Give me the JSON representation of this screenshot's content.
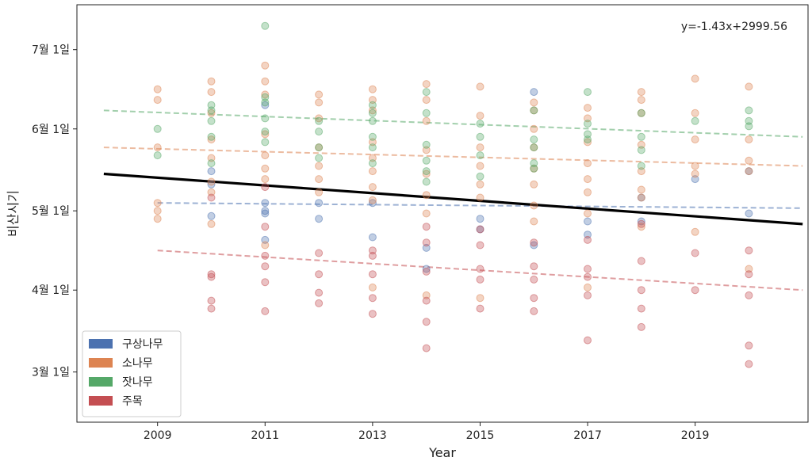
{
  "chart_data": {
    "type": "scatter",
    "title": "",
    "xlabel": "Year",
    "ylabel": "비산시기",
    "xlim": [
      2007.5,
      2021.1
    ],
    "ylim_dates": [
      "2018-02-10",
      "2018-07-18"
    ],
    "x_ticks": [
      2009,
      2011,
      2013,
      2015,
      2017,
      2019
    ],
    "y_ticks": [
      {
        "date": "2018-03-01",
        "label": "3월 1일"
      },
      {
        "date": "2018-04-01",
        "label": "4월 1일"
      },
      {
        "date": "2018-05-01",
        "label": "5월 1일"
      },
      {
        "date": "2018-06-01",
        "label": "6월 1일"
      },
      {
        "date": "2018-07-01",
        "label": "7월 1일"
      }
    ],
    "annotation": "y=-1.43x+2999.56",
    "legend_position": "lower-left",
    "overall_trend": {
      "color": "#000000",
      "points": [
        {
          "x": 2008,
          "date": "2018-05-15"
        },
        {
          "x": 2021,
          "date": "2018-04-26"
        }
      ]
    },
    "series": [
      {
        "name": "구상나무",
        "color": "#4c72b0",
        "trend": [
          {
            "x": 2009,
            "date": "2018-05-04"
          },
          {
            "x": 2021,
            "date": "2018-05-02"
          }
        ],
        "points": [
          {
            "x": 2010,
            "date": "2018-05-16"
          },
          {
            "x": 2010,
            "date": "2018-05-11"
          },
          {
            "x": 2010,
            "date": "2018-04-29"
          },
          {
            "x": 2011,
            "date": "2018-06-10"
          },
          {
            "x": 2011,
            "date": "2018-05-04"
          },
          {
            "x": 2011,
            "date": "2018-05-01"
          },
          {
            "x": 2011,
            "date": "2018-04-30"
          },
          {
            "x": 2011,
            "date": "2018-04-20"
          },
          {
            "x": 2012,
            "date": "2018-05-04"
          },
          {
            "x": 2012,
            "date": "2018-04-28"
          },
          {
            "x": 2013,
            "date": "2018-05-04"
          },
          {
            "x": 2013,
            "date": "2018-04-21"
          },
          {
            "x": 2014,
            "date": "2018-04-17"
          },
          {
            "x": 2014,
            "date": "2018-04-09"
          },
          {
            "x": 2015,
            "date": "2018-04-28"
          },
          {
            "x": 2015,
            "date": "2018-04-24"
          },
          {
            "x": 2016,
            "date": "2018-06-15"
          },
          {
            "x": 2016,
            "date": "2018-04-18"
          },
          {
            "x": 2017,
            "date": "2018-04-27"
          },
          {
            "x": 2017,
            "date": "2018-04-22"
          },
          {
            "x": 2018,
            "date": "2018-05-06"
          },
          {
            "x": 2018,
            "date": "2018-04-27"
          },
          {
            "x": 2019,
            "date": "2018-05-13"
          },
          {
            "x": 2020,
            "date": "2018-05-16"
          },
          {
            "x": 2020,
            "date": "2018-04-30"
          }
        ]
      },
      {
        "name": "소나무",
        "color": "#dd8452",
        "trend": [
          {
            "x": 2008,
            "date": "2018-05-25"
          },
          {
            "x": 2021,
            "date": "2018-05-18"
          }
        ],
        "points": [
          {
            "x": 2009,
            "date": "2018-06-16"
          },
          {
            "x": 2009,
            "date": "2018-06-12"
          },
          {
            "x": 2009,
            "date": "2018-05-25"
          },
          {
            "x": 2009,
            "date": "2018-05-04"
          },
          {
            "x": 2009,
            "date": "2018-05-01"
          },
          {
            "x": 2009,
            "date": "2018-04-28"
          },
          {
            "x": 2010,
            "date": "2018-06-19"
          },
          {
            "x": 2010,
            "date": "2018-06-15"
          },
          {
            "x": 2010,
            "date": "2018-06-07"
          },
          {
            "x": 2010,
            "date": "2018-05-28"
          },
          {
            "x": 2010,
            "date": "2018-05-21"
          },
          {
            "x": 2010,
            "date": "2018-05-12"
          },
          {
            "x": 2010,
            "date": "2018-05-08"
          },
          {
            "x": 2010,
            "date": "2018-04-26"
          },
          {
            "x": 2011,
            "date": "2018-06-25"
          },
          {
            "x": 2011,
            "date": "2018-06-19"
          },
          {
            "x": 2011,
            "date": "2018-06-14"
          },
          {
            "x": 2011,
            "date": "2018-05-30"
          },
          {
            "x": 2011,
            "date": "2018-05-22"
          },
          {
            "x": 2011,
            "date": "2018-05-17"
          },
          {
            "x": 2011,
            "date": "2018-05-13"
          },
          {
            "x": 2011,
            "date": "2018-04-18"
          },
          {
            "x": 2012,
            "date": "2018-06-14"
          },
          {
            "x": 2012,
            "date": "2018-06-11"
          },
          {
            "x": 2012,
            "date": "2018-06-05"
          },
          {
            "x": 2012,
            "date": "2018-05-25"
          },
          {
            "x": 2012,
            "date": "2018-05-18"
          },
          {
            "x": 2012,
            "date": "2018-05-13"
          },
          {
            "x": 2012,
            "date": "2018-05-08"
          },
          {
            "x": 2013,
            "date": "2018-06-16"
          },
          {
            "x": 2013,
            "date": "2018-06-12"
          },
          {
            "x": 2013,
            "date": "2018-06-08"
          },
          {
            "x": 2013,
            "date": "2018-05-27"
          },
          {
            "x": 2013,
            "date": "2018-05-21"
          },
          {
            "x": 2013,
            "date": "2018-05-16"
          },
          {
            "x": 2013,
            "date": "2018-05-10"
          },
          {
            "x": 2013,
            "date": "2018-05-05"
          },
          {
            "x": 2013,
            "date": "2018-04-02"
          },
          {
            "x": 2014,
            "date": "2018-06-18"
          },
          {
            "x": 2014,
            "date": "2018-06-12"
          },
          {
            "x": 2014,
            "date": "2018-06-04"
          },
          {
            "x": 2014,
            "date": "2018-05-24"
          },
          {
            "x": 2014,
            "date": "2018-05-15"
          },
          {
            "x": 2014,
            "date": "2018-05-07"
          },
          {
            "x": 2014,
            "date": "2018-04-30"
          },
          {
            "x": 2014,
            "date": "2018-03-30"
          },
          {
            "x": 2015,
            "date": "2018-06-17"
          },
          {
            "x": 2015,
            "date": "2018-06-06"
          },
          {
            "x": 2015,
            "date": "2018-05-25"
          },
          {
            "x": 2015,
            "date": "2018-05-18"
          },
          {
            "x": 2015,
            "date": "2018-05-11"
          },
          {
            "x": 2015,
            "date": "2018-05-06"
          },
          {
            "x": 2015,
            "date": "2018-03-29"
          },
          {
            "x": 2016,
            "date": "2018-06-11"
          },
          {
            "x": 2016,
            "date": "2018-06-08"
          },
          {
            "x": 2016,
            "date": "2018-06-01"
          },
          {
            "x": 2016,
            "date": "2018-05-25"
          },
          {
            "x": 2016,
            "date": "2018-05-17"
          },
          {
            "x": 2016,
            "date": "2018-05-11"
          },
          {
            "x": 2016,
            "date": "2018-05-03"
          },
          {
            "x": 2016,
            "date": "2018-04-27"
          },
          {
            "x": 2017,
            "date": "2018-06-09"
          },
          {
            "x": 2017,
            "date": "2018-06-05"
          },
          {
            "x": 2017,
            "date": "2018-05-27"
          },
          {
            "x": 2017,
            "date": "2018-05-19"
          },
          {
            "x": 2017,
            "date": "2018-05-13"
          },
          {
            "x": 2017,
            "date": "2018-05-08"
          },
          {
            "x": 2017,
            "date": "2018-04-30"
          },
          {
            "x": 2017,
            "date": "2018-04-02"
          },
          {
            "x": 2018,
            "date": "2018-06-15"
          },
          {
            "x": 2018,
            "date": "2018-06-12"
          },
          {
            "x": 2018,
            "date": "2018-06-07"
          },
          {
            "x": 2018,
            "date": "2018-05-26"
          },
          {
            "x": 2018,
            "date": "2018-05-16"
          },
          {
            "x": 2018,
            "date": "2018-05-09"
          },
          {
            "x": 2018,
            "date": "2018-05-06"
          },
          {
            "x": 2018,
            "date": "2018-04-25"
          },
          {
            "x": 2019,
            "date": "2018-06-20"
          },
          {
            "x": 2019,
            "date": "2018-06-07"
          },
          {
            "x": 2019,
            "date": "2018-05-28"
          },
          {
            "x": 2019,
            "date": "2018-05-18"
          },
          {
            "x": 2019,
            "date": "2018-05-15"
          },
          {
            "x": 2019,
            "date": "2018-04-23"
          },
          {
            "x": 2020,
            "date": "2018-06-17"
          },
          {
            "x": 2020,
            "date": "2018-05-28"
          },
          {
            "x": 2020,
            "date": "2018-05-20"
          },
          {
            "x": 2020,
            "date": "2018-05-16"
          },
          {
            "x": 2020,
            "date": "2018-04-09"
          }
        ]
      },
      {
        "name": "잣나무",
        "color": "#55a868",
        "trend": [
          {
            "x": 2008,
            "date": "2018-06-08"
          },
          {
            "x": 2021,
            "date": "2018-05-29"
          }
        ],
        "points": [
          {
            "x": 2009,
            "date": "2018-06-01"
          },
          {
            "x": 2009,
            "date": "2018-05-22"
          },
          {
            "x": 2010,
            "date": "2018-06-10"
          },
          {
            "x": 2010,
            "date": "2018-06-08"
          },
          {
            "x": 2010,
            "date": "2018-06-04"
          },
          {
            "x": 2010,
            "date": "2018-05-29"
          },
          {
            "x": 2010,
            "date": "2018-05-19"
          },
          {
            "x": 2011,
            "date": "2018-07-10"
          },
          {
            "x": 2011,
            "date": "2018-06-13"
          },
          {
            "x": 2011,
            "date": "2018-06-11"
          },
          {
            "x": 2011,
            "date": "2018-06-05"
          },
          {
            "x": 2011,
            "date": "2018-05-31"
          },
          {
            "x": 2011,
            "date": "2018-05-27"
          },
          {
            "x": 2012,
            "date": "2018-06-04"
          },
          {
            "x": 2012,
            "date": "2018-05-31"
          },
          {
            "x": 2012,
            "date": "2018-05-25"
          },
          {
            "x": 2012,
            "date": "2018-05-21"
          },
          {
            "x": 2013,
            "date": "2018-06-10"
          },
          {
            "x": 2013,
            "date": "2018-06-07"
          },
          {
            "x": 2013,
            "date": "2018-06-04"
          },
          {
            "x": 2013,
            "date": "2018-05-29"
          },
          {
            "x": 2013,
            "date": "2018-05-25"
          },
          {
            "x": 2013,
            "date": "2018-05-19"
          },
          {
            "x": 2014,
            "date": "2018-06-15"
          },
          {
            "x": 2014,
            "date": "2018-06-07"
          },
          {
            "x": 2014,
            "date": "2018-05-26"
          },
          {
            "x": 2014,
            "date": "2018-05-20"
          },
          {
            "x": 2014,
            "date": "2018-05-16"
          },
          {
            "x": 2014,
            "date": "2018-05-12"
          },
          {
            "x": 2015,
            "date": "2018-06-03"
          },
          {
            "x": 2015,
            "date": "2018-05-29"
          },
          {
            "x": 2015,
            "date": "2018-05-22"
          },
          {
            "x": 2015,
            "date": "2018-05-14"
          },
          {
            "x": 2016,
            "date": "2018-06-08"
          },
          {
            "x": 2016,
            "date": "2018-05-28"
          },
          {
            "x": 2016,
            "date": "2018-05-25"
          },
          {
            "x": 2016,
            "date": "2018-05-19"
          },
          {
            "x": 2016,
            "date": "2018-05-17"
          },
          {
            "x": 2017,
            "date": "2018-06-15"
          },
          {
            "x": 2017,
            "date": "2018-06-03"
          },
          {
            "x": 2017,
            "date": "2018-05-30"
          },
          {
            "x": 2017,
            "date": "2018-05-28"
          },
          {
            "x": 2018,
            "date": "2018-06-07"
          },
          {
            "x": 2018,
            "date": "2018-05-29"
          },
          {
            "x": 2018,
            "date": "2018-05-24"
          },
          {
            "x": 2018,
            "date": "2018-05-18"
          },
          {
            "x": 2019,
            "date": "2018-06-04"
          },
          {
            "x": 2020,
            "date": "2018-06-08"
          },
          {
            "x": 2020,
            "date": "2018-06-04"
          },
          {
            "x": 2020,
            "date": "2018-06-02"
          }
        ]
      },
      {
        "name": "주목",
        "color": "#c44e52",
        "trend": [
          {
            "x": 2009,
            "date": "2018-04-16"
          },
          {
            "x": 2021,
            "date": "2018-04-01"
          }
        ],
        "points": [
          {
            "x": 2010,
            "date": "2018-05-06"
          },
          {
            "x": 2010,
            "date": "2018-04-07"
          },
          {
            "x": 2010,
            "date": "2018-04-06"
          },
          {
            "x": 2010,
            "date": "2018-03-28"
          },
          {
            "x": 2010,
            "date": "2018-03-25"
          },
          {
            "x": 2011,
            "date": "2018-05-10"
          },
          {
            "x": 2011,
            "date": "2018-04-25"
          },
          {
            "x": 2011,
            "date": "2018-04-14"
          },
          {
            "x": 2011,
            "date": "2018-04-10"
          },
          {
            "x": 2011,
            "date": "2018-04-04"
          },
          {
            "x": 2011,
            "date": "2018-03-24"
          },
          {
            "x": 2012,
            "date": "2018-04-15"
          },
          {
            "x": 2012,
            "date": "2018-04-07"
          },
          {
            "x": 2012,
            "date": "2018-03-31"
          },
          {
            "x": 2012,
            "date": "2018-03-27"
          },
          {
            "x": 2013,
            "date": "2018-04-16"
          },
          {
            "x": 2013,
            "date": "2018-04-14"
          },
          {
            "x": 2013,
            "date": "2018-04-07"
          },
          {
            "x": 2013,
            "date": "2018-03-29"
          },
          {
            "x": 2013,
            "date": "2018-03-23"
          },
          {
            "x": 2014,
            "date": "2018-04-25"
          },
          {
            "x": 2014,
            "date": "2018-04-19"
          },
          {
            "x": 2014,
            "date": "2018-04-08"
          },
          {
            "x": 2014,
            "date": "2018-03-28"
          },
          {
            "x": 2014,
            "date": "2018-03-20"
          },
          {
            "x": 2014,
            "date": "2018-03-10"
          },
          {
            "x": 2015,
            "date": "2018-04-24"
          },
          {
            "x": 2015,
            "date": "2018-04-18"
          },
          {
            "x": 2015,
            "date": "2018-04-09"
          },
          {
            "x": 2015,
            "date": "2018-04-05"
          },
          {
            "x": 2015,
            "date": "2018-03-25"
          },
          {
            "x": 2016,
            "date": "2018-04-19"
          },
          {
            "x": 2016,
            "date": "2018-04-10"
          },
          {
            "x": 2016,
            "date": "2018-04-05"
          },
          {
            "x": 2016,
            "date": "2018-03-29"
          },
          {
            "x": 2016,
            "date": "2018-03-24"
          },
          {
            "x": 2017,
            "date": "2018-04-20"
          },
          {
            "x": 2017,
            "date": "2018-04-09"
          },
          {
            "x": 2017,
            "date": "2018-04-06"
          },
          {
            "x": 2017,
            "date": "2018-03-30"
          },
          {
            "x": 2017,
            "date": "2018-03-13"
          },
          {
            "x": 2018,
            "date": "2018-04-26"
          },
          {
            "x": 2018,
            "date": "2018-04-12"
          },
          {
            "x": 2018,
            "date": "2018-04-01"
          },
          {
            "x": 2018,
            "date": "2018-03-25"
          },
          {
            "x": 2018,
            "date": "2018-03-18"
          },
          {
            "x": 2019,
            "date": "2018-04-15"
          },
          {
            "x": 2019,
            "date": "2018-04-01"
          },
          {
            "x": 2020,
            "date": "2018-04-16"
          },
          {
            "x": 2020,
            "date": "2018-04-07"
          },
          {
            "x": 2020,
            "date": "2018-03-30"
          },
          {
            "x": 2020,
            "date": "2018-03-11"
          },
          {
            "x": 2020,
            "date": "2018-03-04"
          }
        ]
      }
    ]
  }
}
